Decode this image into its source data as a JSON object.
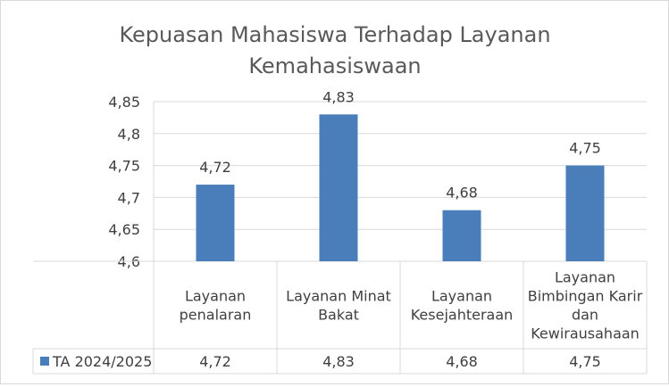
{
  "chart_data": {
    "type": "bar",
    "title_line1": "Kepuasan Mahasiswa Terhadap Layanan",
    "title_line2": "Kemahasiswaan",
    "categories": [
      [
        "Layanan",
        "penalaran"
      ],
      [
        "Layanan Minat",
        "Bakat"
      ],
      [
        "Layanan",
        "Kesejahteraan"
      ],
      [
        "Layanan",
        "Bimbingan Karir",
        "dan",
        "Kewirausahaan"
      ]
    ],
    "series": [
      {
        "name": "TA 2024/2025",
        "values": [
          4.72,
          4.83,
          4.68,
          4.75
        ],
        "labels": [
          "4,72",
          "4,83",
          "4,68",
          "4,75"
        ]
      }
    ],
    "ylim": [
      4.6,
      4.85
    ],
    "yticks": [
      4.6,
      4.65,
      4.7,
      4.75,
      4.8,
      4.85
    ],
    "ytick_labels": [
      "4,6",
      "4,65",
      "4,7",
      "4,75",
      "4,8",
      "4,85"
    ],
    "grid": true,
    "data_table": true,
    "colors": {
      "bar": "#4a7ebb",
      "grid": "#d9d9d9",
      "text": "#404040",
      "title": "#595959"
    }
  }
}
